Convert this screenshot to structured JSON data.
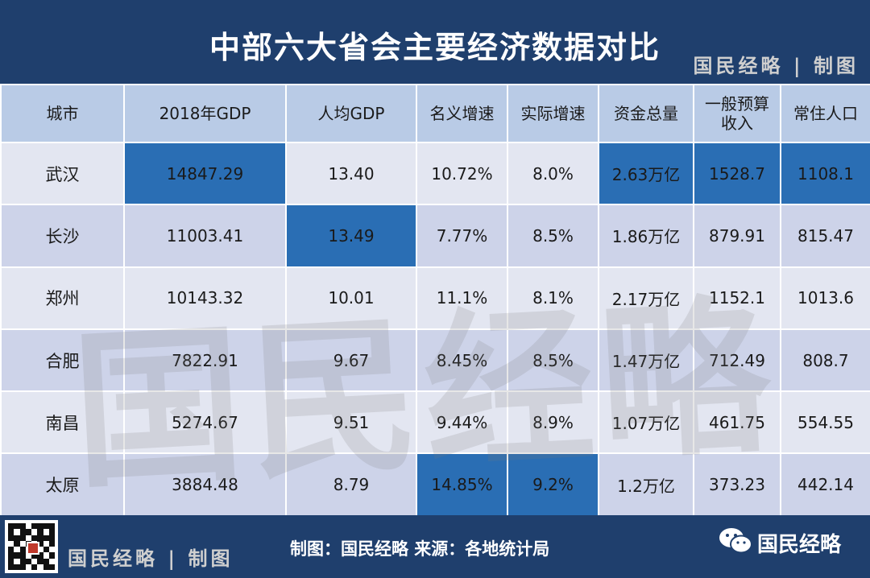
{
  "title": "中部六大省会主要经济数据对比",
  "title_brand": "国民经略 | 制图",
  "table": {
    "headers": [
      "城市",
      "2018年GDP",
      "人均GDP",
      "名义增速",
      "实际增速",
      "资金总量",
      "一般预算收入",
      "常住人口"
    ],
    "header_6_line1": "一般预算",
    "header_6_line2": "收入",
    "rows": [
      [
        "武汉",
        "14847.29",
        "13.40",
        "10.72%",
        "8.0%",
        "2.63万亿",
        "1528.7",
        "1108.1"
      ],
      [
        "长沙",
        "11003.41",
        "13.49",
        "7.77%",
        "8.5%",
        "1.86万亿",
        "879.91",
        "815.47"
      ],
      [
        "郑州",
        "10143.32",
        "10.01",
        "11.1%",
        "8.1%",
        "2.17万亿",
        "1152.1",
        "1013.6"
      ],
      [
        "合肥",
        "7822.91",
        "9.67",
        "8.45%",
        "8.5%",
        "1.47万亿",
        "712.49",
        "808.7"
      ],
      [
        "南昌",
        "5274.67",
        "9.51",
        "9.44%",
        "8.9%",
        "1.07万亿",
        "461.75",
        "554.55"
      ],
      [
        "太原",
        "3884.48",
        "8.79",
        "14.85%",
        "9.2%",
        "1.2万亿",
        "373.23",
        "442.14"
      ]
    ]
  },
  "watermark": "国民经略",
  "footer": {
    "brand": "国民经略 | 制图",
    "source": "制图：国民经略  来源：各地统计局",
    "wechat_name": "国民经略",
    "wechat_icon": "wechat-icon",
    "qr_icon": "qr-code-icon"
  },
  "colors": {
    "navy": "#1f3f6d",
    "header": "#b9cbe6",
    "row_light": "#e3e6f1",
    "row_dark": "#cdd3e9",
    "highlight": "#2a6eb4"
  }
}
